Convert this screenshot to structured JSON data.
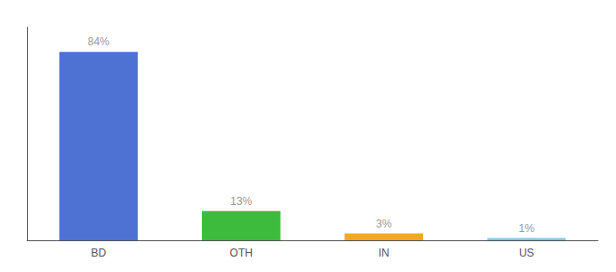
{
  "chart_data": {
    "type": "bar",
    "categories": [
      "BD",
      "OTH",
      "IN",
      "US"
    ],
    "values": [
      84,
      13,
      3,
      1
    ],
    "value_labels": [
      "84%",
      "13%",
      "3%",
      "1%"
    ],
    "colors": [
      "#4d72d4",
      "#3dbb3d",
      "#f5a623",
      "#7ec8e3"
    ],
    "ylim": [
      0,
      95
    ],
    "grid": false,
    "data_labels": true,
    "tick_labels": "x"
  }
}
